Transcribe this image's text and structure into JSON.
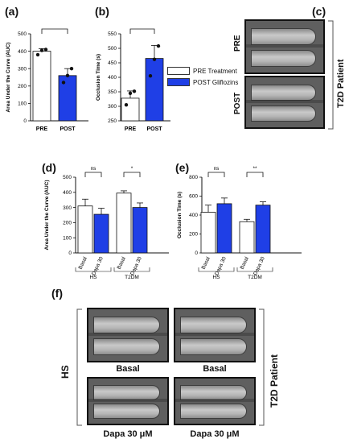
{
  "panels": {
    "a": "(a)",
    "b": "(b)",
    "c": "(c)",
    "d": "(d)",
    "e": "(e)",
    "f": "(f)"
  },
  "legend": {
    "items": [
      {
        "label": "PRE Treatment",
        "color": "#ffffff"
      },
      {
        "label": "POST Gliflozins",
        "color": "#1f3fe6"
      }
    ]
  },
  "panel_c": {
    "labels": {
      "pre": "PRE",
      "post": "POST",
      "side": "T2D Patient"
    }
  },
  "panel_f": {
    "labels": {
      "tl": "Basal",
      "tr": "Basal",
      "bl": "Dapa 30 μM",
      "br": "Dapa 30 μM",
      "left": "HS",
      "right": "T2D Patient"
    }
  },
  "colors": {
    "blue": "#1f3fe6",
    "white": "#ffffff"
  },
  "chart_data": [
    {
      "id": "a",
      "type": "bar",
      "ylabel": "Area Under the Curve (AUC)",
      "categories": [
        "PRE",
        "POST"
      ],
      "values": [
        400,
        260
      ],
      "errors": [
        15,
        40
      ],
      "colors": [
        "#ffffff",
        "#1f3fe6"
      ],
      "points": [
        [
          380,
          405,
          410
        ],
        [
          220,
          260,
          300
        ]
      ],
      "ylim": [
        0,
        500
      ],
      "yticks": [
        "0",
        "100",
        "200",
        "300",
        "400",
        "500"
      ],
      "significance": [
        {
          "from": 0,
          "to": 1,
          "label": ""
        }
      ]
    },
    {
      "id": "b",
      "type": "bar",
      "ylabel": "Occlusion Time (s)",
      "categories": [
        "PRE",
        "POST"
      ],
      "values": [
        328,
        465
      ],
      "errors": [
        25,
        45
      ],
      "colors": [
        "#ffffff",
        "#1f3fe6"
      ],
      "points": [
        [
          305,
          345,
          352
        ],
        [
          405,
          462,
          508
        ]
      ],
      "ylim": [
        250,
        550
      ],
      "yticks": [
        "250",
        "300",
        "350",
        "400",
        "450",
        "500",
        "550"
      ],
      "significance": [
        {
          "from": 0,
          "to": 1,
          "label": ""
        }
      ]
    },
    {
      "id": "d",
      "type": "bar",
      "ylabel": "Area Under the Curve (AUC)",
      "categories": [
        "Basal",
        "Dapa 30",
        "Basal",
        "Dapa 30"
      ],
      "groups": [
        "HS",
        "T2DM"
      ],
      "values": [
        310,
        255,
        395,
        300
      ],
      "errors": [
        45,
        40,
        15,
        30
      ],
      "colors": [
        "#ffffff",
        "#1f3fe6",
        "#ffffff",
        "#1f3fe6"
      ],
      "ylim": [
        0,
        500
      ],
      "yticks": [
        "0",
        "100",
        "200",
        "300",
        "400",
        "500"
      ],
      "significance": [
        {
          "from": 0,
          "to": 1,
          "label": "ns"
        },
        {
          "from": 2,
          "to": 3,
          "label": "*"
        }
      ]
    },
    {
      "id": "e",
      "type": "bar",
      "ylabel": "Occlusion Time (s)",
      "categories": [
        "Basal",
        "Dapa 30",
        "Basal",
        "Dapa 30"
      ],
      "groups": [
        "HS",
        "T2DM"
      ],
      "values": [
        430,
        520,
        330,
        505
      ],
      "errors": [
        75,
        60,
        25,
        35
      ],
      "colors": [
        "#ffffff",
        "#1f3fe6",
        "#ffffff",
        "#1f3fe6"
      ],
      "ylim": [
        0,
        800
      ],
      "yticks": [
        "0",
        "200",
        "400",
        "600",
        "800"
      ],
      "significance": [
        {
          "from": 0,
          "to": 1,
          "label": "ns"
        },
        {
          "from": 2,
          "to": 3,
          "label": "**"
        }
      ]
    }
  ]
}
